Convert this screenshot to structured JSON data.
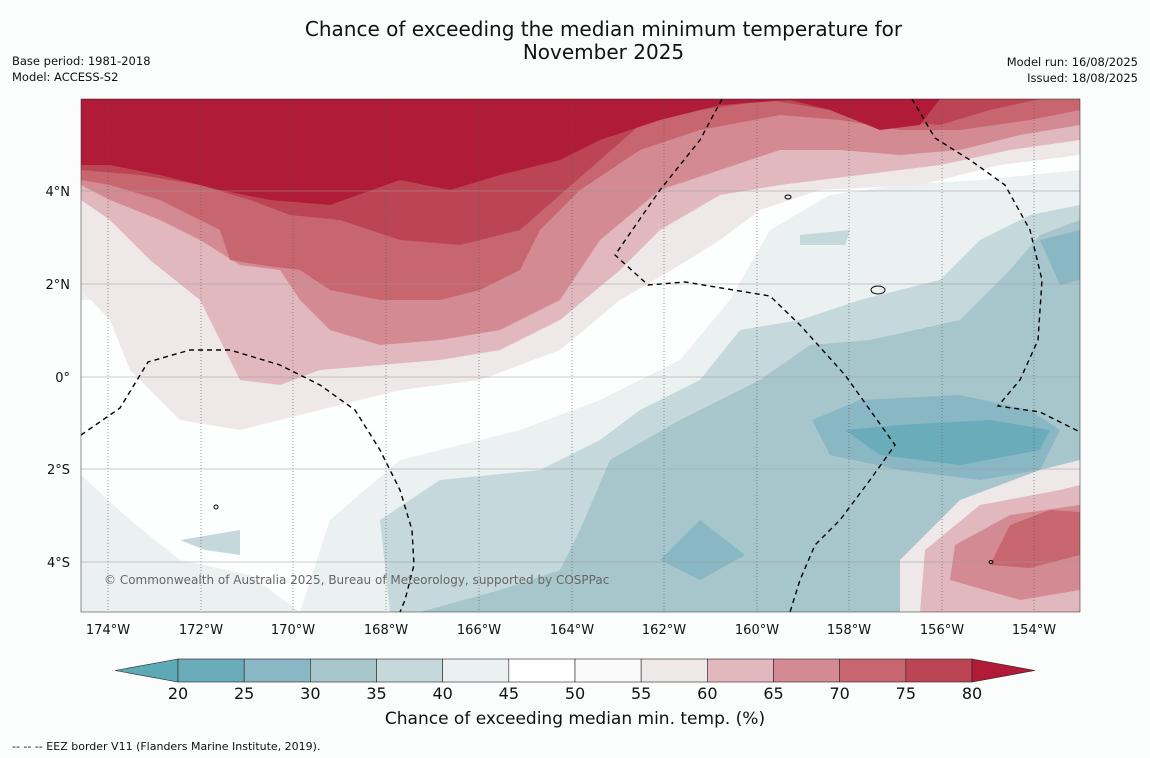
{
  "header": {
    "title_line1": "Chance of exceeding the median minimum temperature for",
    "title_line2": "November 2025",
    "base_period": "Base period: 1981-2018",
    "model": "Model: ACCESS-S2",
    "model_run": "Model run: 16/08/2025",
    "issued": "Issued: 18/08/2025"
  },
  "map": {
    "copyright": "© Commonwealth of Australia 2025, Bureau of Meteorology, supported by COSPPac",
    "lon_ticks": [
      "174°W",
      "172°W",
      "170°W",
      "168°W",
      "166°W",
      "164°W",
      "162°W",
      "160°W",
      "158°W",
      "156°W",
      "154°W"
    ],
    "lat_ticks": [
      "4°N",
      "2°N",
      "0°",
      "2°S",
      "4°S"
    ],
    "lon_range_deg": [
      -174.6,
      -153.1
    ],
    "lat_range_deg": [
      -5.1,
      6.0
    ]
  },
  "colorbar": {
    "ticks": [
      "20",
      "25",
      "30",
      "35",
      "40",
      "45",
      "50",
      "55",
      "60",
      "65",
      "70",
      "75",
      "80"
    ],
    "colors": [
      "#5ea9b6",
      "#6aacba",
      "#8ab7c4",
      "#a7c6cc",
      "#c5d8dc",
      "#ebf0f1",
      "#ffffff",
      "#f9f9f9",
      "#efe8e9",
      "#e1b8bd",
      "#d48a93",
      "#c86670",
      "#bc4553",
      "#b01c38"
    ],
    "label": "Chance of exceeding median min. temp. (%)"
  },
  "footer": {
    "eez_note": "--  --  -- EEZ border V11 (Flanders Marine Institute, 2019)."
  }
}
